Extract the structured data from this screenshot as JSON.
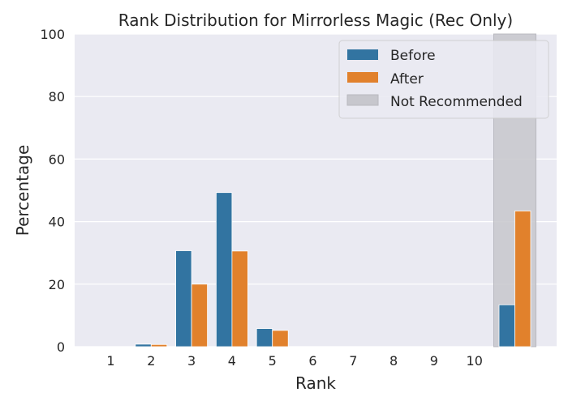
{
  "chart_data": {
    "type": "bar",
    "title": "Rank Distribution for Mirrorless Magic (Rec Only)",
    "xlabel": "Rank",
    "ylabel": "Percentage",
    "ylim": [
      0,
      100
    ],
    "yticks": [
      0,
      20,
      40,
      60,
      80,
      100
    ],
    "categories": [
      "1",
      "2",
      "3",
      "4",
      "5",
      "6",
      "7",
      "8",
      "9",
      "10",
      ""
    ],
    "series": [
      {
        "name": "Before",
        "color": "#3274a1",
        "values": [
          0,
          0.8,
          30.7,
          49.3,
          5.8,
          0,
          0,
          0,
          0,
          0,
          13.4
        ]
      },
      {
        "name": "After",
        "color": "#e1812c",
        "values": [
          0,
          0.7,
          20.0,
          30.6,
          5.2,
          0,
          0,
          0,
          0,
          0,
          43.4
        ]
      }
    ],
    "highlight": {
      "name": "Not Recommended",
      "category_index": 10,
      "color": "#c7c7cd"
    },
    "grid": true,
    "legend_position": "top-right",
    "background": "#eaeaf2"
  }
}
